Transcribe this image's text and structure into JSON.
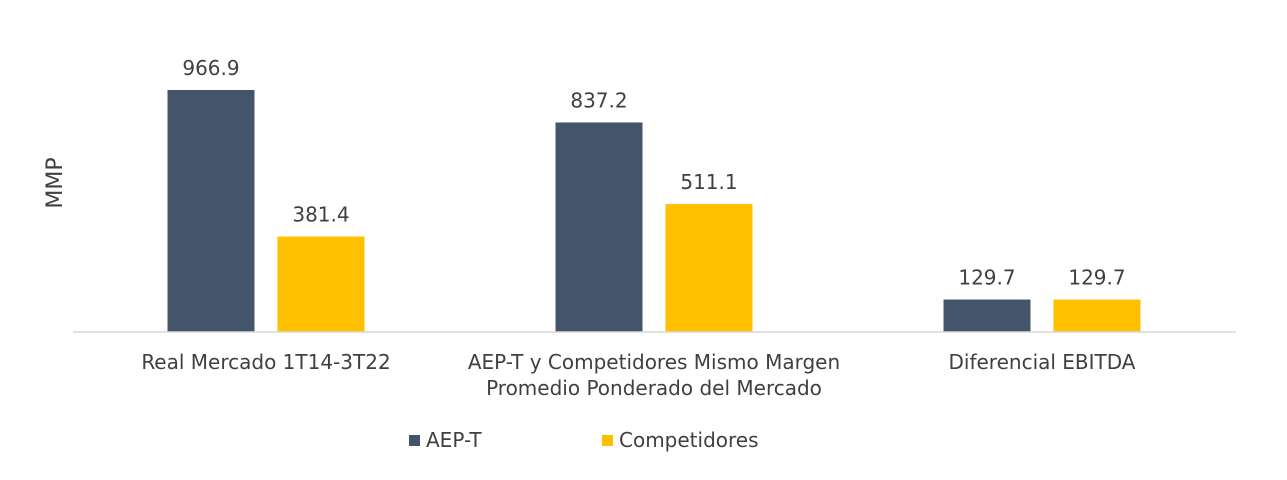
{
  "chart_data": {
    "type": "bar",
    "ylabel": "MMP",
    "categories": [
      [
        "Real Mercado 1T14-3T22"
      ],
      [
        "AEP-T y Competidores Mismo Margen",
        "Promedio Ponderado del Mercado"
      ],
      [
        "Diferencial EBITDA"
      ]
    ],
    "series": [
      {
        "name": "AEP-T",
        "color": "#44546A",
        "values": [
          966.9,
          837.2,
          129.7
        ],
        "labels": [
          "966.9",
          "837.2",
          "129.7"
        ]
      },
      {
        "name": "Competidores",
        "color": "#FFC000",
        "values": [
          381.4,
          511.1,
          129.7
        ],
        "labels": [
          "381.4",
          "511.1",
          "129.7"
        ]
      }
    ],
    "ylim": [
      0,
      1000
    ],
    "grid": false,
    "legend_position": "bottom"
  }
}
